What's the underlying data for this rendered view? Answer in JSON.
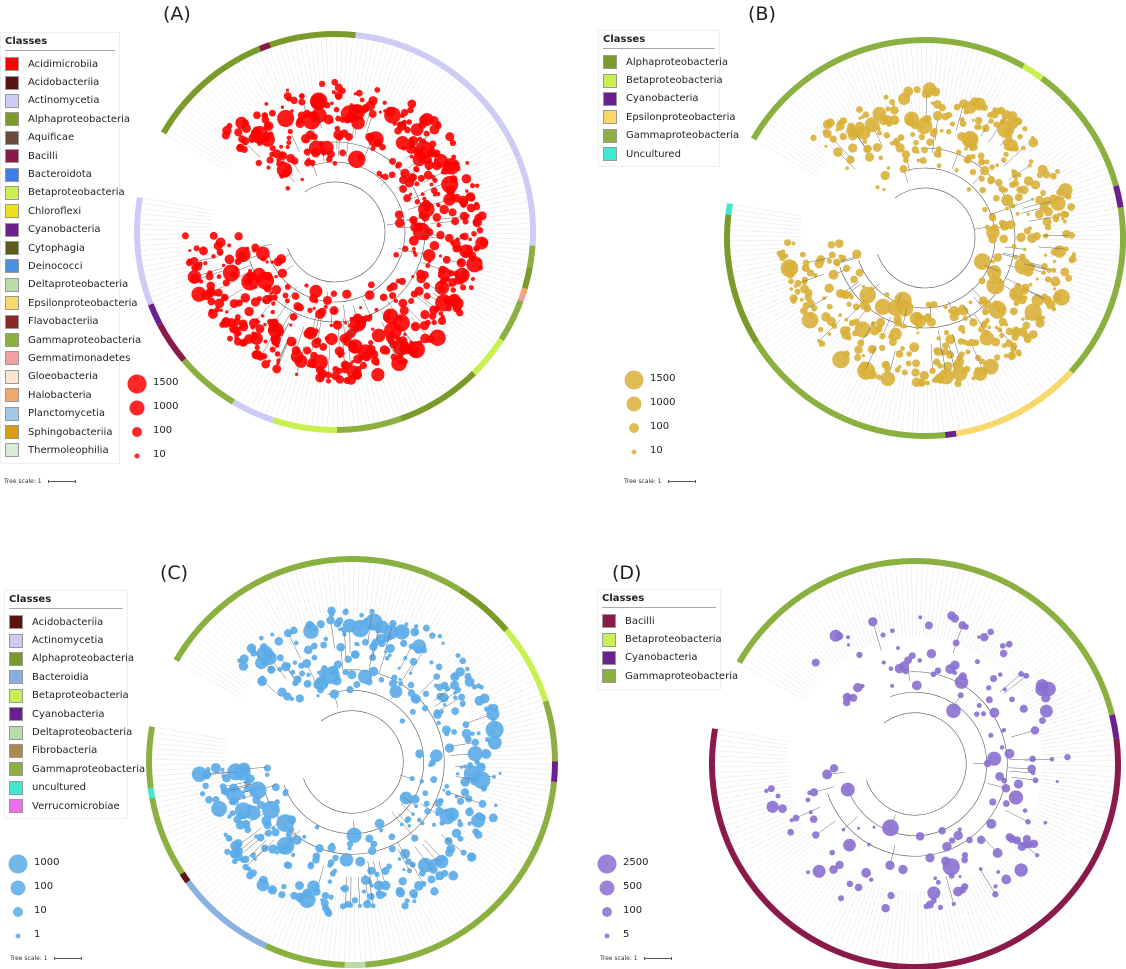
{
  "panels": [
    {
      "label": "(A)",
      "legend_title": "Classes",
      "point_color": "#ff0000",
      "classes": [
        {
          "name": "Acidimicrobiia",
          "color": "#ff0000"
        },
        {
          "name": "Acidobacteriia",
          "color": "#5a1414"
        },
        {
          "name": "Actinomycetia",
          "color": "#ccccf5"
        },
        {
          "name": "Alphaproteobacteria",
          "color": "#7a9a2a"
        },
        {
          "name": "Aquificae",
          "color": "#6b4a3a"
        },
        {
          "name": "Bacilli",
          "color": "#8a1a4a"
        },
        {
          "name": "Bacteroidota",
          "color": "#3a80e8"
        },
        {
          "name": "Betaproteobacteria",
          "color": "#c8f050"
        },
        {
          "name": "Chloroflexi",
          "color": "#f0e020"
        },
        {
          "name": "Cyanobacteria",
          "color": "#6a2090"
        },
        {
          "name": "Cytophagia",
          "color": "#5e5a18"
        },
        {
          "name": "Deinococci",
          "color": "#4a90e0"
        },
        {
          "name": "Deltaproteobacteria",
          "color": "#b8dca8"
        },
        {
          "name": "Epsilonproteobacteria",
          "color": "#f8d868"
        },
        {
          "name": "Flavobacteriia",
          "color": "#8a2828"
        },
        {
          "name": "Gammaproteobacteria",
          "color": "#8ab040"
        },
        {
          "name": "Gemmatimonadetes",
          "color": "#f0a0a0"
        },
        {
          "name": "Gloeobacteria",
          "color": "#fae5d0"
        },
        {
          "name": "Halobacteria",
          "color": "#f0a868"
        },
        {
          "name": "Planctomycetia",
          "color": "#a0c8e8"
        },
        {
          "name": "Sphingobacteriia",
          "color": "#d8a010"
        },
        {
          "name": "Thermoleophilia",
          "color": "#d8ecd8"
        }
      ],
      "sizes": [
        "1500",
        "1000",
        "100",
        "10"
      ],
      "tree_scale": "Tree scale: 1"
    },
    {
      "label": "(B)",
      "legend_title": "Classes",
      "point_color": "#d9b038",
      "classes": [
        {
          "name": "Alphaproteobacteria",
          "color": "#7a9a2a"
        },
        {
          "name": "Betaproteobacteria",
          "color": "#c8f050"
        },
        {
          "name": "Cyanobacteria",
          "color": "#6a2090"
        },
        {
          "name": "Epsilonproteobacteria",
          "color": "#f8d868"
        },
        {
          "name": "Gammaproteobacteria",
          "color": "#8ab040"
        },
        {
          "name": "Uncultured",
          "color": "#40e8d0"
        }
      ],
      "sizes": [
        "1500",
        "1000",
        "100",
        "10"
      ],
      "tree_scale": "Tree scale: 1"
    },
    {
      "label": "(C)",
      "legend_title": "Classes",
      "point_color": "#5aabe8",
      "classes": [
        {
          "name": "Acidobacteriia",
          "color": "#5a1414"
        },
        {
          "name": "Actinomycetia",
          "color": "#ccccf5"
        },
        {
          "name": "Alphaproteobacteria",
          "color": "#7a9a2a"
        },
        {
          "name": "Bacteroidia",
          "color": "#8ab0e0"
        },
        {
          "name": "Betaproteobacteria",
          "color": "#c8f050"
        },
        {
          "name": "Cyanobacteria",
          "color": "#6a2090"
        },
        {
          "name": "Deltaproteobacteria",
          "color": "#b8dca8"
        },
        {
          "name": "Fibrobacteria",
          "color": "#a88a50"
        },
        {
          "name": "Gammaproteobacteria",
          "color": "#8ab040"
        },
        {
          "name": "uncultured",
          "color": "#40e8d0"
        },
        {
          "name": "Verrucomicrobiae",
          "color": "#e870e8"
        }
      ],
      "sizes": [
        "1000",
        "100",
        "10",
        "1"
      ],
      "tree_scale": "Tree scale: 1"
    },
    {
      "label": "(D)",
      "legend_title": "Classes",
      "point_color": "#8a6fd0",
      "classes": [
        {
          "name": "Bacilli",
          "color": "#8a1a4a"
        },
        {
          "name": "Betaproteobacteria",
          "color": "#c8f050"
        },
        {
          "name": "Cyanobacteria",
          "color": "#6a2090"
        },
        {
          "name": "Gammaproteobacteria",
          "color": "#8ab040"
        }
      ],
      "sizes": [
        "2500",
        "500",
        "100",
        "5"
      ],
      "tree_scale": "Tree scale: 1"
    }
  ]
}
